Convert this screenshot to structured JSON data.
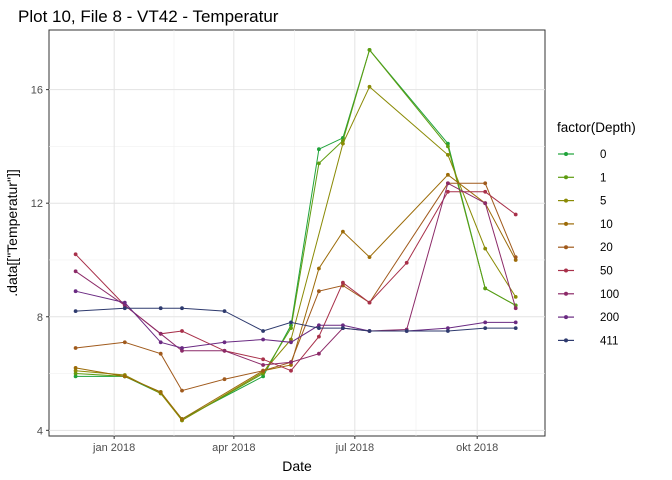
{
  "chart_data": {
    "type": "line",
    "title": "Plot 10, File 8 - VT42  -  Temperatur",
    "xlabel": "Date",
    "ylabel": ".data[[\"Temperatur\"]]",
    "xlim": [
      "2017-11-13",
      "2018-11-21"
    ],
    "ylim": [
      3.8,
      18.1
    ],
    "x_ticks": [
      {
        "date": "2018-01-01",
        "label": "jan 2018"
      },
      {
        "date": "2018-04-01",
        "label": "apr 2018"
      },
      {
        "date": "2018-07-01",
        "label": "jul 2018"
      },
      {
        "date": "2018-10-01",
        "label": "okt 2018"
      }
    ],
    "y_ticks": [
      4,
      8,
      12,
      16
    ],
    "grid": true,
    "legend": {
      "title": "factor(Depth)",
      "position": "right"
    },
    "x": [
      "2017-12-03",
      "2018-01-09",
      "2018-02-05",
      "2018-02-21",
      "2018-03-25",
      "2018-04-23",
      "2018-05-14",
      "2018-06-04",
      "2018-06-22",
      "2018-07-12",
      "2018-08-09",
      "2018-09-09",
      "2018-10-07",
      "2018-10-30"
    ],
    "series": [
      {
        "name": "0",
        "color": "#1FA33A",
        "values": [
          5.9,
          5.9,
          5.3,
          4.4,
          null,
          5.9,
          7.7,
          13.9,
          14.3,
          17.4,
          null,
          14.1,
          9.0,
          8.4
        ]
      },
      {
        "name": "1",
        "color": "#5E9C10",
        "values": [
          6.0,
          5.9,
          5.35,
          4.35,
          null,
          6.0,
          7.6,
          13.4,
          14.2,
          17.4,
          null,
          14.0,
          9.0,
          8.4
        ]
      },
      {
        "name": "5",
        "color": "#8A8A05",
        "values": [
          6.1,
          5.95,
          5.3,
          4.35,
          null,
          6.05,
          7.2,
          null,
          14.1,
          16.1,
          null,
          13.7,
          10.4,
          8.7
        ]
      },
      {
        "name": "10",
        "color": "#9C6B08",
        "values": [
          6.2,
          5.9,
          5.35,
          4.4,
          null,
          6.1,
          6.3,
          9.7,
          11.0,
          10.1,
          null,
          13.0,
          12.0,
          10.0
        ]
      },
      {
        "name": "20",
        "color": "#A05A1C",
        "values": [
          6.9,
          7.1,
          6.7,
          5.4,
          5.8,
          6.1,
          6.4,
          8.9,
          9.1,
          8.5,
          null,
          12.7,
          12.7,
          10.1
        ]
      },
      {
        "name": "50",
        "color": "#A8304A",
        "values": [
          10.2,
          8.4,
          7.4,
          7.5,
          6.8,
          6.5,
          6.1,
          7.3,
          9.2,
          8.5,
          9.9,
          12.4,
          12.4,
          11.6
        ]
      },
      {
        "name": "100",
        "color": "#8C2A68",
        "values": [
          9.6,
          8.4,
          7.4,
          6.8,
          6.8,
          6.3,
          6.4,
          6.7,
          7.6,
          7.5,
          7.55,
          12.7,
          12.0,
          8.3
        ]
      },
      {
        "name": "200",
        "color": "#6A2A82",
        "values": [
          8.9,
          8.5,
          7.1,
          6.9,
          7.1,
          7.2,
          7.1,
          7.7,
          7.7,
          7.5,
          7.5,
          7.6,
          7.8,
          7.8
        ]
      },
      {
        "name": "411",
        "color": "#2E3A6E",
        "values": [
          8.2,
          8.3,
          8.3,
          8.3,
          8.2,
          7.5,
          7.8,
          7.6,
          7.6,
          7.5,
          7.5,
          7.5,
          7.6,
          7.6
        ]
      }
    ]
  }
}
